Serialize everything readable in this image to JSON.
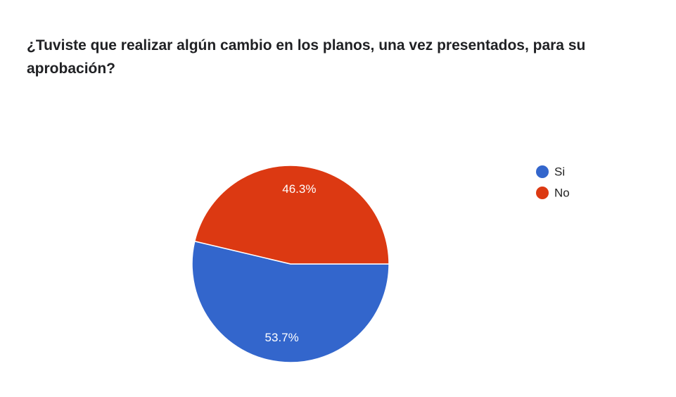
{
  "chart_data": {
    "type": "pie",
    "title": "¿Tuviste que realizar algún cambio en los planos, una vez presentados, para su aprobación?",
    "categories": [
      "Si",
      "No"
    ],
    "values": [
      53.7,
      46.3
    ],
    "value_labels": [
      "53.7%",
      "46.3%"
    ],
    "colors": [
      "#3366cc",
      "#dc3912"
    ],
    "legend": "right"
  }
}
